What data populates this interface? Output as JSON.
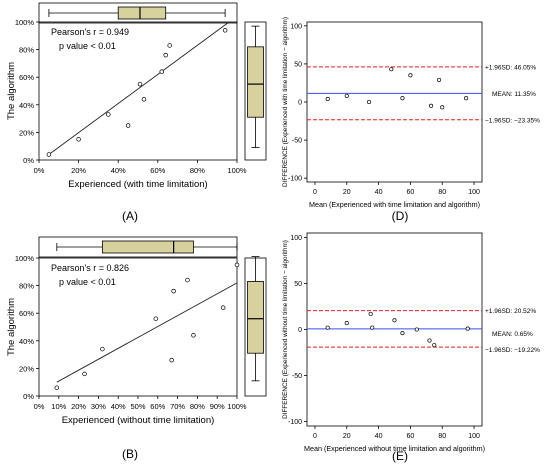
{
  "colors": {
    "box_fill": "#d6d19d",
    "mean_line": "#3a4cff",
    "loa_line": "#e02020",
    "axis": "#000000",
    "points": "#000000"
  },
  "chart_data": [
    {
      "panel_label": "(A)",
      "type": "scatter",
      "xlabel": "Experienced (with time limitation)",
      "ylabel": "The algorithm",
      "xlim": [
        0,
        100
      ],
      "ylim": [
        0,
        100
      ],
      "x_ticks": [
        "0%",
        "20%",
        "40%",
        "60%",
        "80%",
        "100%"
      ],
      "y_ticks": [
        "0%",
        "20%",
        "40%",
        "60%",
        "80%",
        "100%"
      ],
      "annotations": [
        "Pearson's r = 0.949",
        "p value < 0.01"
      ],
      "points": [
        {
          "x": 5,
          "y": 4
        },
        {
          "x": 20,
          "y": 15
        },
        {
          "x": 35,
          "y": 33
        },
        {
          "x": 45,
          "y": 25
        },
        {
          "x": 51,
          "y": 55
        },
        {
          "x": 53,
          "y": 44
        },
        {
          "x": 62,
          "y": 64
        },
        {
          "x": 64,
          "y": 76
        },
        {
          "x": 66,
          "y": 83
        },
        {
          "x": 94,
          "y": 94
        }
      ],
      "fit_line": {
        "x": [
          5,
          96
        ],
        "y": [
          4,
          100
        ]
      },
      "marginal_box_x": {
        "min": 5,
        "q1": 40,
        "median": 51,
        "q3": 64,
        "max": 94
      },
      "marginal_box_y": {
        "min": 9,
        "q1": 31,
        "median": 55,
        "q3": 82,
        "max": 97
      }
    },
    {
      "panel_label": "(B)",
      "type": "scatter",
      "xlabel": "Experienced (without time limitation)",
      "ylabel": "The algorithm",
      "xlim": [
        0,
        100
      ],
      "ylim": [
        0,
        100
      ],
      "x_ticks": [
        "0%",
        "10%",
        "20%",
        "30%",
        "40%",
        "50%",
        "60%",
        "70%",
        "80%",
        "90%",
        "100%"
      ],
      "y_ticks": [
        "0%",
        "20%",
        "40%",
        "60%",
        "80%",
        "100%"
      ],
      "annotations": [
        "Pearson's r = 0.826",
        "p value < 0.01"
      ],
      "points": [
        {
          "x": 9,
          "y": 6
        },
        {
          "x": 23,
          "y": 16
        },
        {
          "x": 32,
          "y": 34
        },
        {
          "x": 59,
          "y": 56
        },
        {
          "x": 67,
          "y": 26
        },
        {
          "x": 68,
          "y": 76
        },
        {
          "x": 75,
          "y": 84
        },
        {
          "x": 78,
          "y": 44
        },
        {
          "x": 93,
          "y": 64
        },
        {
          "x": 100,
          "y": 95
        }
      ],
      "fit_line": {
        "x": [
          9,
          100
        ],
        "y": [
          10,
          82
        ]
      },
      "marginal_box_x": {
        "min": 9,
        "q1": 32,
        "median": 68,
        "q3": 78,
        "max": 100
      },
      "marginal_box_y": {
        "min": 11,
        "q1": 31,
        "median": 56,
        "q3": 83,
        "max": 101
      }
    },
    {
      "panel_label": "(D)",
      "type": "scatter",
      "xlabel": "Mean (Experienced with time limitation and algorithm)",
      "ylabel": "DIFFERENCE (Experienced with time limitation − algorithm)",
      "xlim": [
        -5,
        105
      ],
      "ylim": [
        -105,
        105
      ],
      "x_ticks": [
        "0",
        "20",
        "40",
        "60",
        "80",
        "100"
      ],
      "y_ticks": [
        "100",
        "50",
        "0",
        "-50",
        "-100"
      ],
      "points": [
        {
          "x": 8,
          "y": 4
        },
        {
          "x": 20,
          "y": 8
        },
        {
          "x": 34,
          "y": 0
        },
        {
          "x": 48,
          "y": 43
        },
        {
          "x": 55,
          "y": 5
        },
        {
          "x": 60,
          "y": 35
        },
        {
          "x": 73,
          "y": -5
        },
        {
          "x": 78,
          "y": 29
        },
        {
          "x": 80,
          "y": -7
        },
        {
          "x": 95,
          "y": 5
        }
      ],
      "mean": {
        "value": 11.35,
        "label": "MEAN: 11.35%"
      },
      "upper_loa": {
        "value": 46.05,
        "label": "+1.96SD: 46.05%"
      },
      "lower_loa": {
        "value": -23.35,
        "label": "−1.96SD: −23.35%"
      }
    },
    {
      "panel_label": "(E)",
      "type": "scatter",
      "xlabel": "Mean (Experienced without time limitation and algorithm)",
      "ylabel": "DIFFERENCE (Experienced without time limitation − algorithm)",
      "xlim": [
        -5,
        105
      ],
      "ylim": [
        -105,
        105
      ],
      "x_ticks": [
        "0",
        "20",
        "40",
        "60",
        "80",
        "100"
      ],
      "y_ticks": [
        "100",
        "50",
        "0",
        "-50",
        "-100"
      ],
      "points": [
        {
          "x": 8,
          "y": 2
        },
        {
          "x": 20,
          "y": 7
        },
        {
          "x": 35,
          "y": 17
        },
        {
          "x": 36,
          "y": 2
        },
        {
          "x": 50,
          "y": 10
        },
        {
          "x": 55,
          "y": -4
        },
        {
          "x": 64,
          "y": 0
        },
        {
          "x": 72,
          "y": -12
        },
        {
          "x": 75,
          "y": -17
        },
        {
          "x": 96,
          "y": 1
        }
      ],
      "mean": {
        "value": 0.65,
        "label": "MEAN: 0.65%"
      },
      "upper_loa": {
        "value": 20.52,
        "label": "+1.96SD: 20.52%"
      },
      "lower_loa": {
        "value": -19.22,
        "label": "−1.96SD: −19.22%"
      }
    }
  ]
}
